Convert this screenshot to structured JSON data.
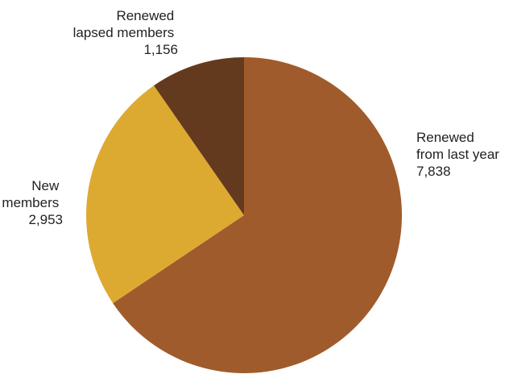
{
  "chart_data": {
    "type": "pie",
    "title": "",
    "start": "top",
    "direction": "clockwise",
    "series": [
      {
        "values": [
          7838,
          2953,
          1156
        ]
      }
    ],
    "slices": [
      {
        "label_lines": [
          "Renewed",
          "from last year"
        ],
        "value_label": "7,838",
        "value": 7838,
        "color": "#a05b2c"
      },
      {
        "label_lines": [
          "New",
          "members"
        ],
        "value_label": "2,953",
        "value": 2953,
        "color": "#ddaa31"
      },
      {
        "label_lines": [
          "Renewed",
          "lapsed members"
        ],
        "value_label": "1,156",
        "value": 1156,
        "color": "#643a1e"
      }
    ],
    "legend": "none",
    "grid": false
  }
}
